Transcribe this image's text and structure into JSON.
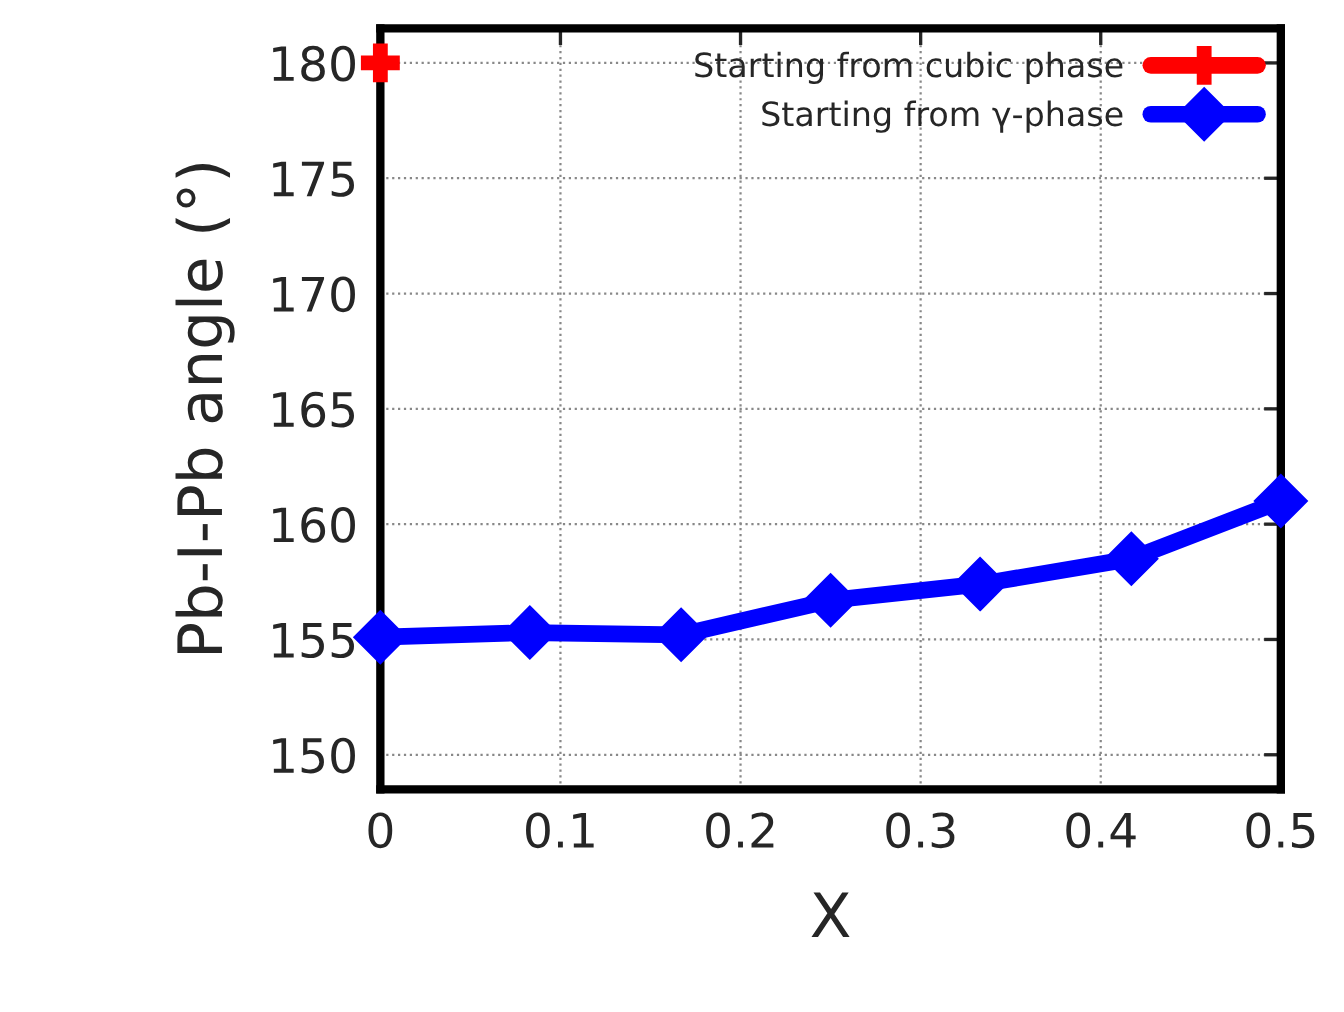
{
  "chart_data": {
    "type": "line",
    "xlabel": "X",
    "ylabel": "Pb-I-Pb angle (°)",
    "xlim": [
      0,
      0.5
    ],
    "xticks": [
      0,
      0.1,
      0.2,
      0.3,
      0.4,
      0.5
    ],
    "ylim": [
      148.5,
      181.5
    ],
    "yticks": [
      150,
      155,
      160,
      165,
      170,
      175,
      180
    ],
    "grid": true,
    "legend": "top right",
    "line_style": "solid",
    "series": [
      {
        "name": "Starting from cubic phase",
        "color": "#ff0000",
        "marker": "cross",
        "x": [
          0
        ],
        "values": [
          180
        ]
      },
      {
        "name": "Starting from γ-phase",
        "color": "#0000ff",
        "marker": "diamond",
        "x": [
          0,
          0.083,
          0.167,
          0.25,
          0.333,
          0.417,
          0.5
        ],
        "values": [
          155.1,
          155.3,
          155.2,
          156.7,
          157.4,
          158.5,
          161.0
        ]
      }
    ]
  }
}
